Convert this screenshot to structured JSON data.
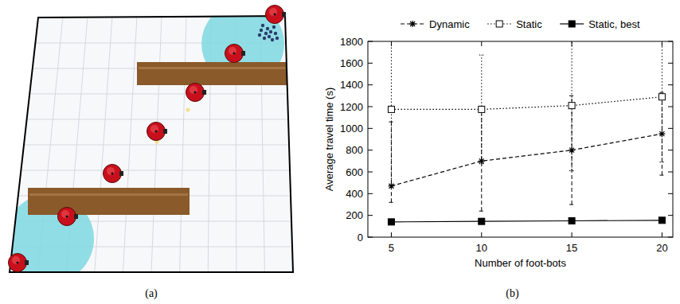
{
  "chart_data": {
    "type": "line",
    "x_label": "Number of foot-bots",
    "y_label": "Average travel time (s)",
    "x": [
      5,
      10,
      15,
      20
    ],
    "xlim": [
      3.7,
      20.6
    ],
    "xticks": [
      5,
      10,
      15,
      20
    ],
    "ylim": [
      0,
      1800
    ],
    "yticks": [
      0,
      200,
      400,
      600,
      800,
      1000,
      1200,
      1400,
      1600,
      1800
    ],
    "grid": false,
    "legend": "top",
    "series": [
      {
        "name": "Dynamic",
        "color": "#000000",
        "marker": "star",
        "line_style": "dashed",
        "values": [
          470,
          700,
          800,
          950
        ],
        "error_low": [
          150,
          460,
          500,
          380
        ],
        "error_high": [
          590,
          460,
          500,
          380
        ]
      },
      {
        "name": "Static",
        "color": "#000000",
        "marker": "square_open",
        "line_style": "dotted",
        "values": [
          1175,
          1175,
          1210,
          1290
        ],
        "error_low": [
          700,
          500,
          600,
          600
        ],
        "error_high": [
          700,
          500,
          600,
          600
        ]
      },
      {
        "name": "Static, best",
        "color": "#000000",
        "marker": "square",
        "line_style": "solid",
        "values": [
          140,
          145,
          150,
          155
        ],
        "error_low": [
          10,
          10,
          10,
          10
        ],
        "error_high": [
          10,
          10,
          10,
          10
        ]
      }
    ]
  },
  "panel_labels": [
    "(a)",
    "(b)"
  ]
}
